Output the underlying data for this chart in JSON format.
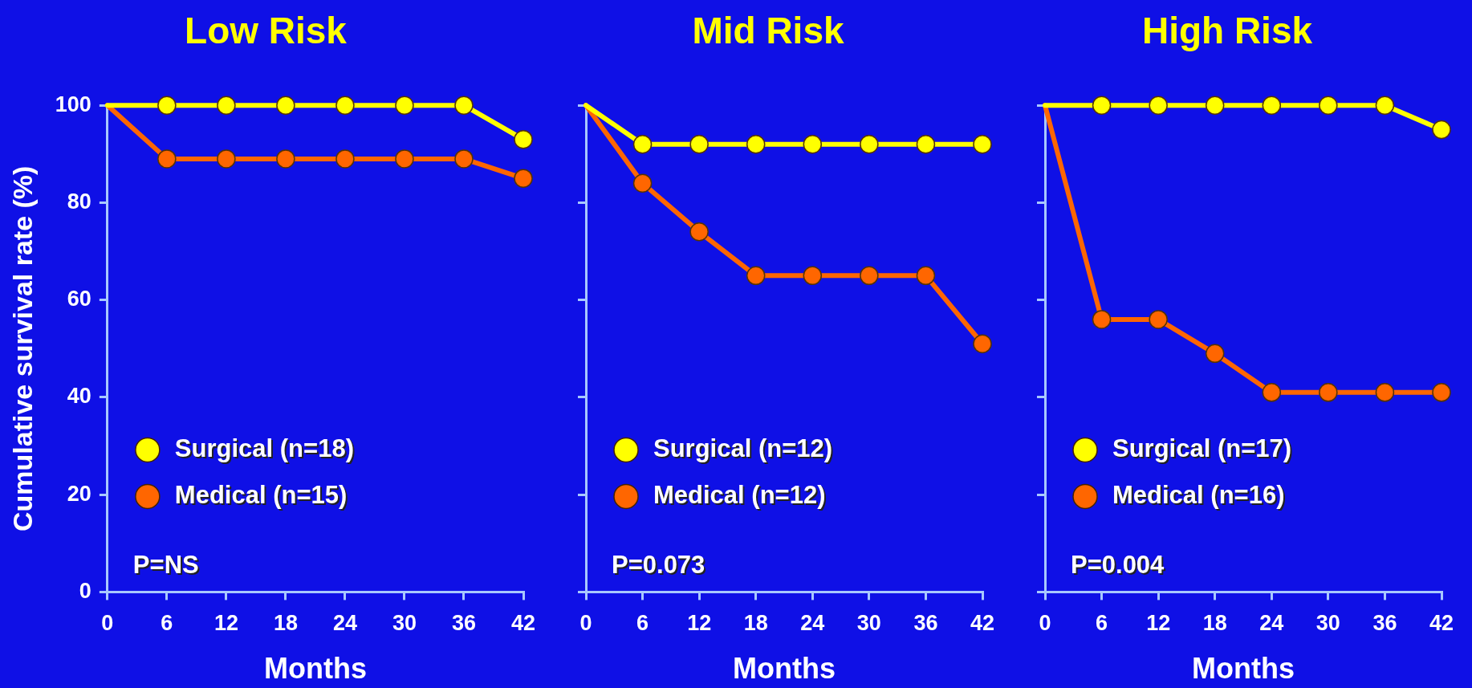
{
  "chart_data": [
    {
      "type": "line",
      "title": "Low Risk",
      "xlabel": "Months",
      "ylabel": "Cumulative survival rate (%)",
      "x": [
        0,
        6,
        12,
        18,
        24,
        30,
        36,
        42
      ],
      "series": [
        {
          "name": "Surgical (n=18)",
          "color": "#ffff00",
          "values": [
            100,
            100,
            100,
            100,
            100,
            100,
            100,
            93
          ]
        },
        {
          "name": "Medical (n=15)",
          "color": "#ff6600",
          "values": [
            100,
            89,
            89,
            89,
            89,
            89,
            89,
            85
          ]
        }
      ],
      "xlim": [
        0,
        42
      ],
      "xticks": [
        0,
        6,
        12,
        18,
        24,
        30,
        36,
        42
      ],
      "ylim": [
        0,
        100
      ],
      "yticks": [
        0,
        20,
        40,
        60,
        80,
        100
      ],
      "annotations": [
        "P=NS"
      ],
      "legend": "bottom left",
      "marker": "circle",
      "line_style": "solid",
      "grid": false
    },
    {
      "type": "line",
      "title": "Mid Risk",
      "xlabel": "Months",
      "x": [
        0,
        6,
        12,
        18,
        24,
        30,
        36,
        42
      ],
      "series": [
        {
          "name": "Surgical (n=12)",
          "color": "#ffff00",
          "values": [
            100,
            92,
            92,
            92,
            92,
            92,
            92,
            92
          ]
        },
        {
          "name": "Medical (n=12)",
          "color": "#ff6600",
          "values": [
            100,
            84,
            74,
            65,
            65,
            65,
            65,
            51
          ]
        }
      ],
      "xlim": [
        0,
        42
      ],
      "xticks": [
        0,
        6,
        12,
        18,
        24,
        30,
        36,
        42
      ],
      "ylim": [
        0,
        100
      ],
      "yticks": [
        0,
        20,
        40,
        60,
        80,
        100
      ],
      "tick_labels": "x",
      "annotations": [
        "P=0.073"
      ],
      "legend": "bottom left",
      "marker": "circle",
      "line_style": "solid",
      "grid": false
    },
    {
      "type": "line",
      "title": "High Risk",
      "xlabel": "Months",
      "x": [
        0,
        6,
        12,
        18,
        24,
        30,
        36,
        42
      ],
      "series": [
        {
          "name": "Surgical (n=17)",
          "color": "#ffff00",
          "values": [
            100,
            100,
            100,
            100,
            100,
            100,
            100,
            95
          ]
        },
        {
          "name": "Medical (n=16)",
          "color": "#ff6600",
          "values": [
            100,
            56,
            56,
            49,
            41,
            41,
            41,
            41
          ]
        }
      ],
      "xlim": [
        0,
        42
      ],
      "xticks": [
        0,
        6,
        12,
        18,
        24,
        30,
        36,
        42
      ],
      "ylim": [
        0,
        100
      ],
      "yticks": [
        0,
        20,
        40,
        60,
        80,
        100
      ],
      "tick_labels": "x",
      "annotations": [
        "P=0.004"
      ],
      "legend": "bottom left",
      "marker": "circle",
      "line_style": "solid",
      "grid": false
    }
  ]
}
